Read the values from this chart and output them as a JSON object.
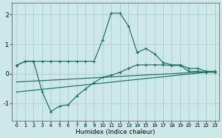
{
  "background_color": "#cce8e8",
  "grid_color": "#aacccc",
  "line_color": "#1a7060",
  "x_label": "Humidex (Indice chaleur)",
  "ylim": [
    -1.6,
    2.4
  ],
  "xlim": [
    -0.5,
    23.5
  ],
  "yticks": [
    -1,
    0,
    1,
    2
  ],
  "xticks": [
    0,
    1,
    2,
    3,
    4,
    5,
    6,
    7,
    8,
    9,
    10,
    11,
    12,
    13,
    14,
    15,
    16,
    17,
    18,
    19,
    20,
    21,
    22,
    23
  ],
  "series1_x": [
    0,
    1,
    2,
    3,
    4,
    5,
    6,
    7,
    8,
    9,
    10,
    11,
    12,
    13,
    14,
    15,
    16,
    17,
    18,
    19,
    20,
    21,
    22,
    23
  ],
  "series1_y": [
    0.28,
    0.42,
    0.42,
    0.42,
    0.42,
    0.42,
    0.42,
    0.42,
    0.42,
    0.42,
    1.15,
    2.05,
    2.05,
    1.62,
    0.72,
    0.85,
    0.68,
    0.38,
    0.3,
    0.3,
    0.18,
    0.18,
    0.08,
    0.08
  ],
  "series2_x": [
    0,
    1,
    2,
    3,
    4,
    5,
    6,
    7,
    8,
    9,
    10,
    11,
    12,
    13,
    14,
    15,
    16,
    17,
    18,
    19,
    20,
    21,
    22,
    23
  ],
  "series2_y": [
    0.28,
    0.42,
    0.42,
    -0.62,
    -1.28,
    -1.1,
    -1.05,
    -0.75,
    -0.52,
    -0.3,
    -0.12,
    -0.05,
    0.05,
    0.18,
    0.3,
    0.3,
    0.3,
    0.3,
    0.28,
    0.28,
    0.08,
    0.08,
    0.05,
    0.05
  ],
  "series3_x": [
    0,
    23
  ],
  "series3_y": [
    -0.62,
    0.08
  ],
  "series4_x": [
    0,
    23
  ],
  "series4_y": [
    -0.28,
    0.08
  ]
}
